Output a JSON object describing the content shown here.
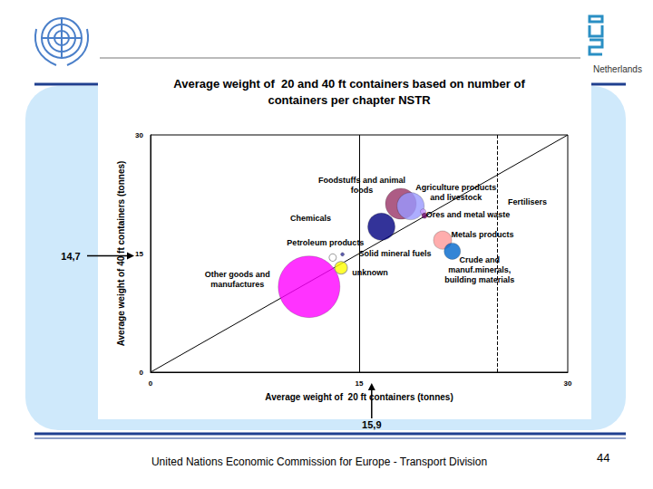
{
  "chart_data": {
    "type": "scatter",
    "title": "Average weight of  20 and 40 ft containers based on number of\ncontainers per chapter NSTR",
    "x_label": "Average weight of  20 ft containers (tonnes)",
    "y_label": "Average weight of 40 ft containers (tonnes)",
    "xlim": [
      0,
      30
    ],
    "xticks": [
      0,
      15,
      30
    ],
    "ylim": [
      0,
      30
    ],
    "yticks": [
      0,
      15,
      30
    ],
    "grid": false,
    "points": [
      {
        "label": "Other goods and\nmanufactures",
        "x": 11.4,
        "y": 10.8,
        "size": 100,
        "color": "#ff00ff"
      },
      {
        "label": "Foodstuffs and animal\nfoods",
        "x": 18.0,
        "y": 21.3,
        "size": 25,
        "color": "#993366"
      },
      {
        "label": "Agriculture products\nand livestock",
        "x": 18.7,
        "y": 21.0,
        "size": 19.5,
        "color": "#9999ff"
      },
      {
        "label": "Chemicals",
        "x": 16.6,
        "y": 18.4,
        "size": 19.5,
        "color": "#000080"
      },
      {
        "label": "Metals products",
        "x": 21.0,
        "y": 16.7,
        "size": 8.7,
        "color": "#ff9999"
      },
      {
        "label": "Crude and\nmanuf.minerals,\nbuilding materials",
        "x": 21.7,
        "y": 15.3,
        "size": 7,
        "color": "#0066cc"
      },
      {
        "label": "unknown",
        "x": 13.7,
        "y": 13.2,
        "size": 4.2,
        "color": "#ffff00"
      },
      {
        "label": "Petroleum products",
        "x": 13.1,
        "y": 14.5,
        "size": 1.4,
        "color": "#ffffff"
      },
      {
        "label": "Solid mineral fuels",
        "x": 13.8,
        "y": 14.9,
        "size": 0.35,
        "color": "#333399"
      },
      {
        "label": "Fertilisers",
        "x": 19.6,
        "y": 20.3,
        "size": 0.8,
        "color": "#cc99ff"
      },
      {
        "label": "Ores and metal waste",
        "x": 19.7,
        "y": 19.8,
        "size": 0.8,
        "color": "#660066"
      }
    ],
    "diagonal": [
      [
        0,
        0
      ],
      [
        30,
        30
      ]
    ],
    "vlines": [
      {
        "x": 15,
        "line_style": "solid"
      },
      {
        "x": 24.9,
        "line_style": "dashed"
      }
    ],
    "annotations": [
      {
        "text": "14,7",
        "axis": "y",
        "value": 14.7
      },
      {
        "text": "15,9",
        "axis": "x",
        "value": 15.9
      }
    ],
    "header_right": "Netherlands",
    "footer": "United Nations Economic Commission for Europe - Transport Division",
    "page_number": "44"
  }
}
